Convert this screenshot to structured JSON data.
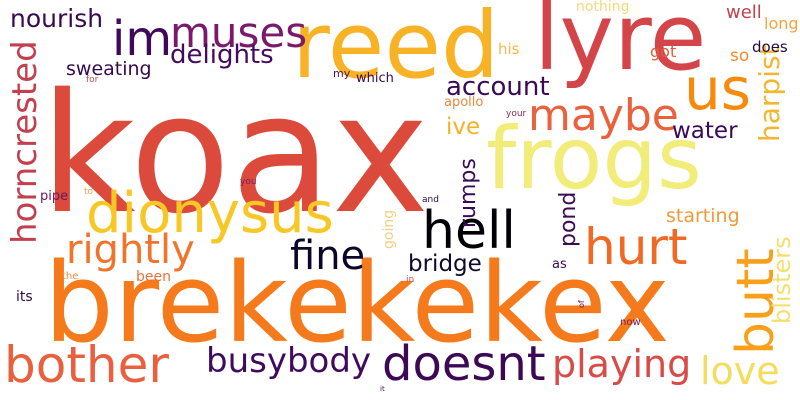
{
  "words": [
    {
      "text": "koax",
      "color": "#dc4a3c"
    },
    {
      "text": "brekekekex",
      "color": "#f47a1b"
    },
    {
      "text": "reed",
      "color": "#f7b225"
    },
    {
      "text": "lyre",
      "color": "#d4454a"
    },
    {
      "text": "frogs",
      "color": "#f2ec7a"
    },
    {
      "text": "us",
      "color": "#f58a0d"
    },
    {
      "text": "im",
      "color": "#40085a"
    },
    {
      "text": "muses",
      "color": "#7b1a6c"
    },
    {
      "text": "nourish",
      "color": "#3a0a4f"
    },
    {
      "text": "delights",
      "color": "#430b5e"
    },
    {
      "text": "dionysus",
      "color": "#f7c825"
    },
    {
      "text": "hell",
      "color": "#000004"
    },
    {
      "text": "maybe",
      "color": "#e9623d"
    },
    {
      "text": "horncrested",
      "color": "#c2404e"
    },
    {
      "text": "rightly",
      "color": "#f0752a"
    },
    {
      "text": "fine",
      "color": "#0d0629"
    },
    {
      "text": "hurt",
      "color": "#f06a25"
    },
    {
      "text": "butt",
      "color": "#f99f1a"
    },
    {
      "text": "harpist",
      "color": "#f2b632"
    },
    {
      "text": "blisters",
      "color": "#f4e06e"
    },
    {
      "text": "bother",
      "color": "#e8603f"
    },
    {
      "text": "busybody",
      "color": "#400b5e"
    },
    {
      "text": "doesnt",
      "color": "#3c0a55"
    },
    {
      "text": "playing",
      "color": "#d84b47"
    },
    {
      "text": "love",
      "color": "#f4dd5e"
    },
    {
      "text": "account",
      "color": "#3a0a55"
    },
    {
      "text": "sweating",
      "color": "#340a4d"
    },
    {
      "text": "water",
      "color": "#3c0958"
    },
    {
      "text": "ive",
      "color": "#f7b024"
    },
    {
      "text": "rumps",
      "color": "#3a0b52"
    },
    {
      "text": "bridge",
      "color": "#0f0a2c"
    },
    {
      "text": "pond",
      "color": "#3c0b57"
    },
    {
      "text": "starting",
      "color": "#f29a37"
    },
    {
      "text": "well",
      "color": "#c4414a"
    },
    {
      "text": "long",
      "color": "#f4a43c"
    },
    {
      "text": "does",
      "color": "#240c3e"
    },
    {
      "text": "so",
      "color": "#ef8a2a"
    },
    {
      "text": "got",
      "color": "#e35a3d"
    },
    {
      "text": "his",
      "color": "#f7b84a"
    },
    {
      "text": "nothing",
      "color": "#f6d879"
    },
    {
      "text": "apollo",
      "color": "#e88a3a"
    },
    {
      "text": "which",
      "color": "#3a0c55"
    },
    {
      "text": "my",
      "color": "#4e0f62"
    },
    {
      "text": "for",
      "color": "#c05058"
    },
    {
      "text": "your",
      "color": "#8e2a5e"
    },
    {
      "text": "pipe",
      "color": "#6a165e"
    },
    {
      "text": "to",
      "color": "#f3a052"
    },
    {
      "text": "you",
      "color": "#7a1e60"
    },
    {
      "text": "going",
      "color": "#f4cf80"
    },
    {
      "text": "and",
      "color": "#240c3e"
    },
    {
      "text": "as",
      "color": "#3a0b52"
    },
    {
      "text": "been",
      "color": "#e8703a"
    },
    {
      "text": "the",
      "color": "#f08a3d"
    },
    {
      "text": "its",
      "color": "#350b4d"
    },
    {
      "text": "in",
      "color": "#c84a4a"
    },
    {
      "text": "of",
      "color": "#5a1460"
    },
    {
      "text": "now",
      "color": "#6a1a60"
    },
    {
      "text": "it",
      "color": "#3a0c55"
    }
  ]
}
